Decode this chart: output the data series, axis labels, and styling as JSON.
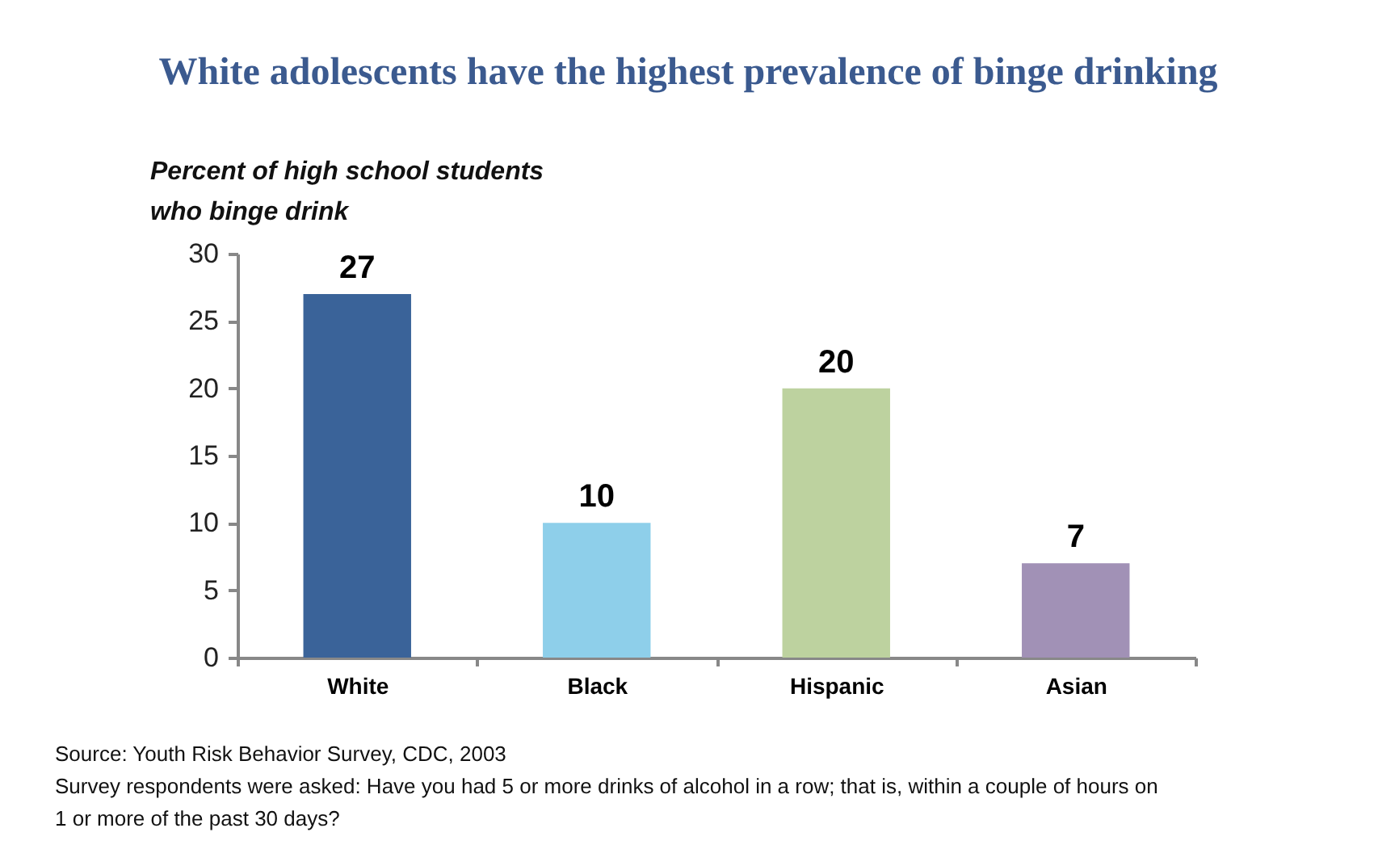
{
  "chart_data": {
    "type": "bar",
    "title": "White adolescents have the highest prevalence of binge drinking",
    "ylabel": "Percent of high school students who binge drink",
    "categories": [
      "White",
      "Black",
      "Hispanic",
      "Asian"
    ],
    "values": [
      27,
      10,
      20,
      7
    ],
    "colors": [
      "#3a6399",
      "#8ecfea",
      "#bdd29f",
      "#a191b6"
    ],
    "ylim": [
      0,
      30
    ],
    "yticks": [
      0,
      5,
      10,
      15,
      20,
      25,
      30
    ],
    "grid": false,
    "data_labels": true,
    "annotations": [
      "Source: Youth Risk Behavior Survey, CDC, 2003",
      "Survey respondents were asked: Have you had 5 or more drinks of alcohol in a row; that is, within a couple of hours on 1 or more of the past 30 days?"
    ]
  }
}
